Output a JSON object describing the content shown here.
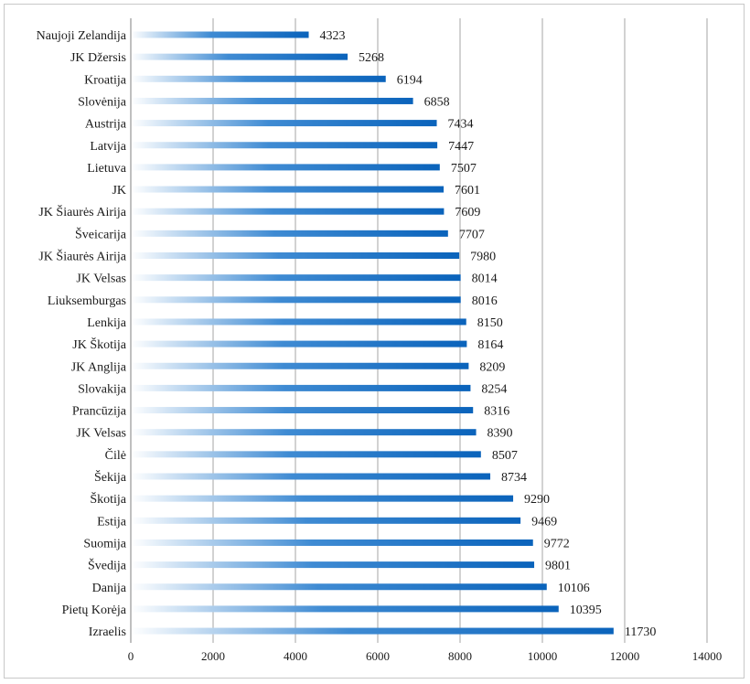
{
  "chart_data": {
    "type": "bar",
    "orientation": "horizontal",
    "categories": [
      "Naujoji Zelandija",
      "JK Džersis",
      "Kroatija",
      "Slovėnija",
      "Austrija",
      "Latvija",
      "Lietuva",
      "JK",
      "JK Šiaurės Airija",
      "Šveicarija",
      "JK Šiaurės Airija",
      "JK Velsas",
      "Liuksemburgas",
      "Lenkija",
      "JK Škotija",
      "JK Anglija",
      "Slovakija",
      "Prancūzija",
      "JK Velsas",
      "Čilė",
      "Šekija",
      "Škotija",
      "Estija",
      "Suomija",
      "Švedija",
      "Danija",
      "Pietų Korėja",
      "Izraelis"
    ],
    "values": [
      4323,
      5268,
      6194,
      6858,
      7434,
      7447,
      7507,
      7601,
      7609,
      7707,
      7980,
      8014,
      8016,
      8150,
      8164,
      8209,
      8254,
      8316,
      8390,
      8507,
      8734,
      9290,
      9469,
      9772,
      9801,
      10106,
      10395,
      11730
    ],
    "value_labels": [
      "4323",
      "5268",
      "6194",
      "6858",
      "7434",
      "7447",
      "7507",
      "7601",
      "7609",
      "7707",
      "7980",
      "8014",
      "8016",
      "8150",
      "8164",
      "8209",
      "8254",
      "8316",
      "8390",
      "8507",
      "8734",
      "9290",
      "9469",
      "9772",
      "9801",
      "10106",
      "10395",
      "11730"
    ],
    "x_ticks": [
      "0",
      "2000",
      "4000",
      "6000",
      "8000",
      "10000",
      "12000",
      "14000"
    ],
    "xlim": [
      0,
      14000
    ],
    "grid": true,
    "legend": "none",
    "bar_gradient": [
      "#ffffff",
      "#0a63bb"
    ],
    "title": "",
    "xlabel": "",
    "ylabel": ""
  }
}
